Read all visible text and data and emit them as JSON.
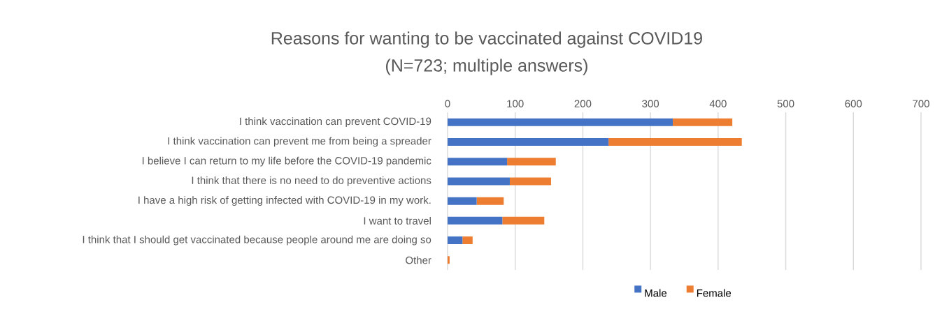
{
  "chart_data": {
    "type": "bar",
    "orientation": "horizontal",
    "stacked": true,
    "title": "Reasons for wanting to be vaccinated against COVID19",
    "subtitle": "(N=723; multiple answers)",
    "categories": [
      "I think vaccination can prevent COVID-19",
      "I think vaccination can prevent me from being a spreader",
      "I believe I can return to my life before the COVID-19 pandemic",
      "I think that there is no need to do preventive actions",
      "I have a high risk of getting infected with COVID-19 in my work.",
      "I want to travel",
      "I think that I should get vaccinated because people around me are doing so",
      "Other"
    ],
    "series": [
      {
        "name": "Male",
        "color": "#4472c4",
        "values": [
          333,
          238,
          88,
          92,
          43,
          81,
          22,
          0
        ]
      },
      {
        "name": "Female",
        "color": "#ed7d31",
        "values": [
          88,
          197,
          72,
          61,
          40,
          62,
          15,
          3
        ]
      }
    ],
    "xlim": [
      0,
      700
    ],
    "xticks": [
      0,
      100,
      200,
      300,
      400,
      500,
      600,
      700
    ],
    "grid": "x",
    "legend": "bottom"
  }
}
